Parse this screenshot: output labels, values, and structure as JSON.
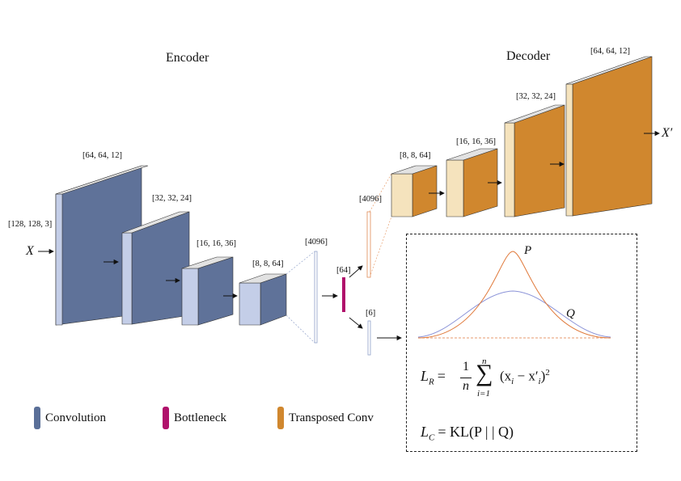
{
  "headings": {
    "encoder": "Encoder",
    "decoder": "Decoder"
  },
  "input_symbol": "X",
  "output_symbol": "X′",
  "encoder": {
    "input_shape": "[128, 128, 3]",
    "blocks": [
      {
        "shape": "[64, 64, 12]"
      },
      {
        "shape": "[32, 32, 24]"
      },
      {
        "shape": "[16, 16, 36]"
      },
      {
        "shape": "[8, 8, 64]"
      }
    ],
    "flatten_shape": "[4096]"
  },
  "bottleneck_shape": "[64]",
  "latent_shape": "[6]",
  "decoder": {
    "flatten_shape": "[4096]",
    "blocks": [
      {
        "shape": "[8, 8, 64]"
      },
      {
        "shape": "[16, 16, 36]"
      },
      {
        "shape": "[32, 32, 24]"
      },
      {
        "shape": "[64, 64, 12]"
      }
    ]
  },
  "distributions": {
    "p_label": "P",
    "q_label": "Q"
  },
  "losses": {
    "recon": {
      "lhs": "L",
      "lhs_sub": "R",
      "frac_num": "1",
      "frac_den": "n",
      "sum_upper": "n",
      "sum_lower": "i=1",
      "body": "(x",
      "body_sub": "i",
      "minus": " − x′",
      "body_sub2": "i",
      "close": ")",
      "power": "2"
    },
    "cluster": {
      "lhs": "L",
      "lhs_sub": "C",
      "rhs": "= KL(P | | Q)"
    }
  },
  "legend": [
    {
      "label": "Convolution",
      "color": "#5a6f98"
    },
    {
      "label": "Bottleneck",
      "color": "#b0106b"
    },
    {
      "label": "Transposed Conv",
      "color": "#d0872e"
    }
  ],
  "colors": {
    "conv_face": "#5f7299",
    "conv_side": "#c4cee8",
    "conv_top": "#e2e2e2",
    "deconv_face": "#d0872e",
    "deconv_side": "#f5e3bd",
    "bottleneck": "#b0106b",
    "curve_p": "#e07a3c",
    "curve_q": "#8b93d8"
  }
}
